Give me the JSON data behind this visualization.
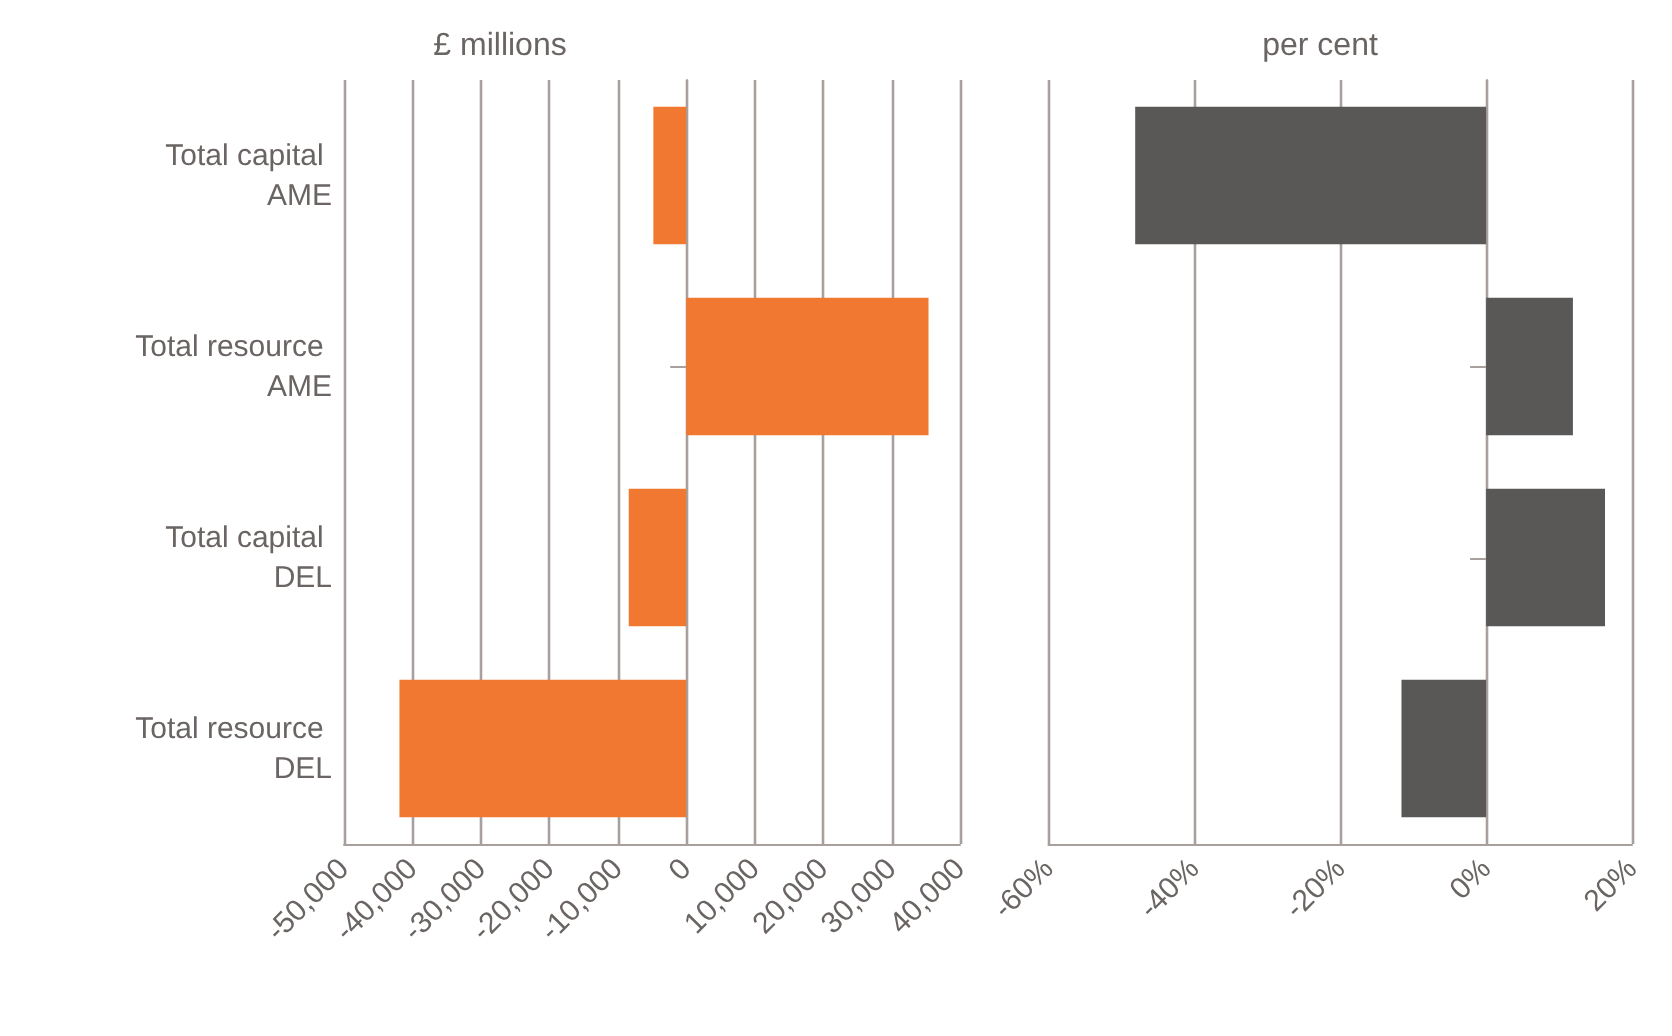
{
  "chart_data": [
    {
      "type": "bar",
      "orientation": "horizontal",
      "title": "£ millions",
      "categories": [
        "Total capital AME",
        "Total resource AME",
        "Total capital DEL",
        "Total resource DEL"
      ],
      "series": [
        {
          "color": "#f07830",
          "values": [
            -4800,
            35400,
            -8400,
            -41900
          ]
        }
      ],
      "xlim": [
        -50000,
        40000
      ],
      "xticks": [
        {
          "value": -50000,
          "label": "-50,000"
        },
        {
          "value": -40000,
          "label": "-40,000"
        },
        {
          "value": -30000,
          "label": "-30,000"
        },
        {
          "value": -20000,
          "label": "-20,000"
        },
        {
          "value": -10000,
          "label": "-10,000"
        },
        0,
        {
          "value": 10000,
          "label": "10,000"
        },
        {
          "value": 20000,
          "label": "20,000"
        },
        {
          "value": 30000,
          "label": "30,000"
        },
        {
          "value": 40000,
          "label": "40,000"
        }
      ],
      "grid": "x"
    },
    {
      "type": "bar",
      "orientation": "horizontal",
      "title": "per cent",
      "categories": [
        "Total capital AME",
        "Total resource AME",
        "Total capital DEL",
        "Total resource DEL"
      ],
      "tick_labels": "x",
      "series": [
        {
          "color": "#5a5857",
          "values": [
            -48.1,
            11.9,
            16.3,
            -11.6
          ]
        }
      ],
      "xlim": [
        -60,
        20
      ],
      "xticks": [
        {
          "value": -60,
          "label": "-60%"
        },
        {
          "value": -40,
          "label": "-40%"
        },
        {
          "value": -20,
          "label": "-20%"
        },
        {
          "value": 0,
          "label": "0%"
        },
        {
          "value": 20,
          "label": "20%"
        }
      ],
      "grid": "x"
    }
  ]
}
